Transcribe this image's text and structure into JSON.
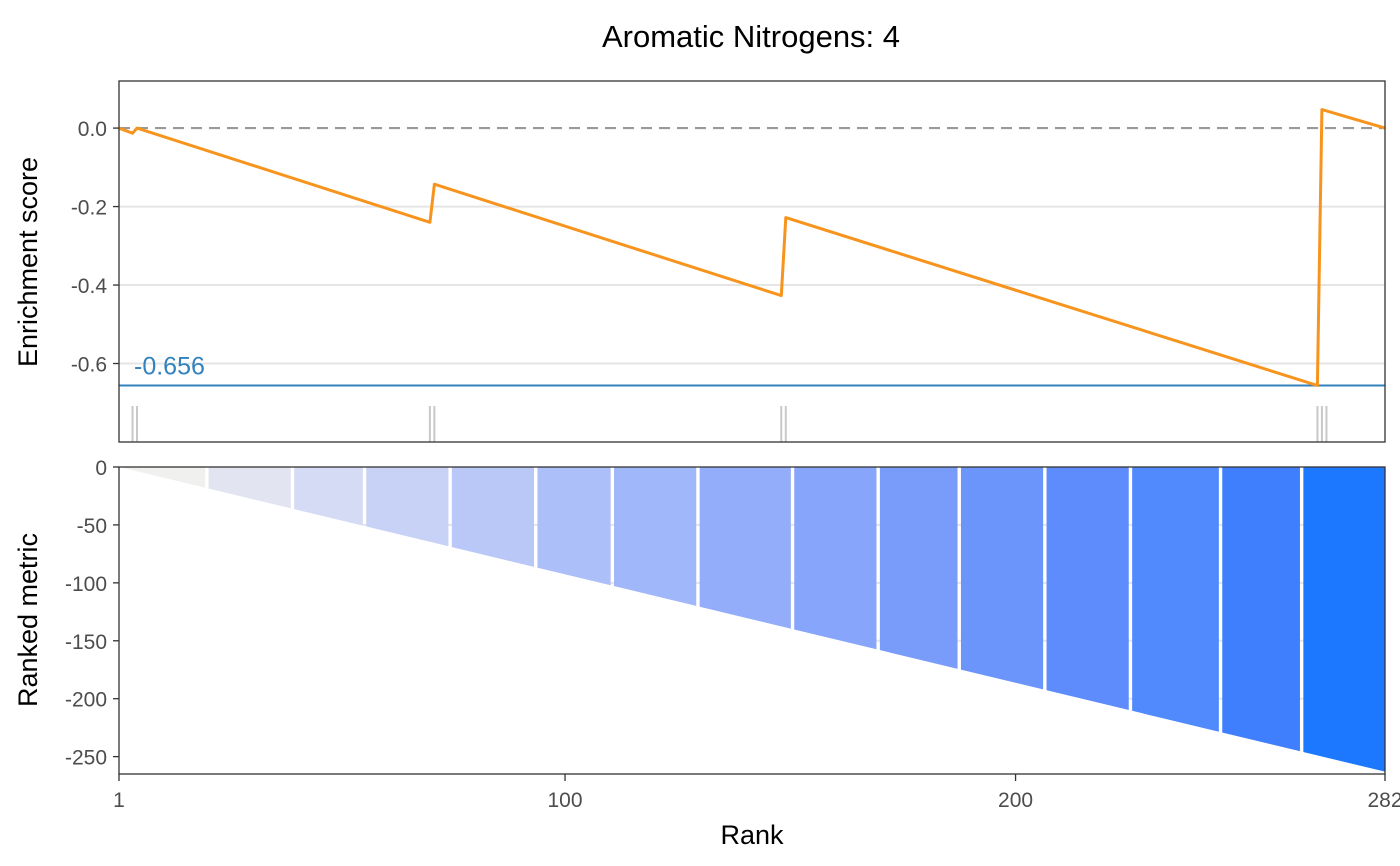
{
  "chart_data": [
    {
      "type": "line",
      "title": "Aromatic Nitrogens: 4",
      "ylabel": "Enrichment score",
      "xlim": [
        1,
        282
      ],
      "ylim": [
        -0.8,
        0.12
      ],
      "yticks": [
        0.0,
        -0.2,
        -0.4,
        -0.6
      ],
      "ytick_labels": [
        "0.0",
        "-0.2",
        "-0.4",
        "-0.6"
      ],
      "series": [
        {
          "color": "#f7941d",
          "x": [
            1,
            4,
            5,
            70,
            71,
            148,
            149,
            267,
            268,
            282
          ],
          "y": [
            0.0,
            -0.013,
            0.0,
            -0.24,
            -0.143,
            -0.427,
            -0.228,
            -0.656,
            0.047,
            0.0
          ]
        }
      ],
      "baseline": {
        "y": 0.0,
        "color": "#999999",
        "style": "dashed"
      },
      "annotation": {
        "label": "-0.656",
        "y": -0.656,
        "color": "#3182bd"
      },
      "hit_ranks": [
        4,
        5,
        70,
        71,
        148,
        149,
        267,
        268,
        269
      ],
      "grid": true
    },
    {
      "type": "area",
      "ylabel": "Ranked metric",
      "xlabel": "Rank",
      "xlim": [
        1,
        282
      ],
      "ylim": [
        -265,
        0
      ],
      "yticks": [
        0,
        -50,
        -100,
        -150,
        -200,
        -250
      ],
      "ytick_labels": [
        "0",
        "-50",
        "-100",
        "-150",
        "-200",
        "-250"
      ],
      "xticks": [
        1,
        100,
        200,
        282
      ],
      "xtick_labels": [
        "1",
        "100",
        "200",
        "282"
      ],
      "metric": {
        "x": [
          1,
          282
        ],
        "y": [
          0,
          -263
        ]
      },
      "bin_breaks": [
        1,
        20.5,
        39.5,
        55.5,
        74.5,
        93.5,
        110.5,
        129.5,
        150.5,
        169.5,
        187.5,
        206.5,
        225.5,
        245.5,
        263.5,
        282
      ],
      "bin_colors": [
        "#f0f1ee",
        "#e2e4f2",
        "#d5daf5",
        "#c8d2f6",
        "#bac8f7",
        "#adbff8",
        "#a0b7f9",
        "#93adfa",
        "#86a5fb",
        "#799cfb",
        "#6c95fc",
        "#5e8cfc",
        "#508afd",
        "#3f7ffd",
        "#1c78fe"
      ],
      "grid": true
    }
  ]
}
